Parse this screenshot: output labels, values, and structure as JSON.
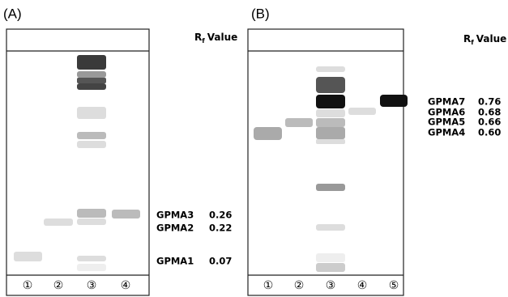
{
  "panels": [
    {
      "label": "(A)",
      "rf_header": {
        "symbol": "R",
        "subscript": "f",
        "text": "Value"
      },
      "lanes": [
        "①",
        "②",
        "③",
        "④"
      ],
      "annotations": [
        {
          "name": "GPMA3",
          "rf": "0.26"
        },
        {
          "name": "GPMA2",
          "rf": "0.22"
        },
        {
          "name": "GPMA1",
          "rf": "0.07"
        }
      ]
    },
    {
      "label": "(B)",
      "rf_header": {
        "symbol": "R",
        "subscript": "f",
        "text": "Value"
      },
      "lanes": [
        "①",
        "②",
        "③",
        "④",
        "⑤"
      ],
      "annotations": [
        {
          "name": "GPMA7",
          "rf": "0.76"
        },
        {
          "name": "GPMA6",
          "rf": "0.68"
        },
        {
          "name": "GPMA5",
          "rf": "0.66"
        },
        {
          "name": "GPMA4",
          "rf": "0.60"
        }
      ]
    }
  ]
}
